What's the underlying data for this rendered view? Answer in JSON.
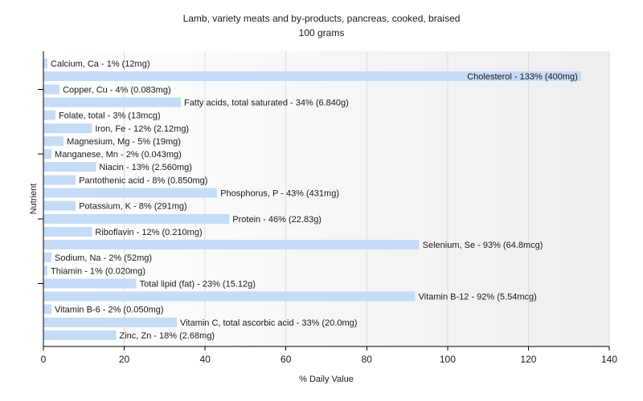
{
  "chart_data": {
    "type": "bar",
    "orientation": "horizontal",
    "title": "Lamb, variety meats and by-products, pancreas, cooked, braised",
    "subtitle": "100 grams",
    "xlabel": "% Daily Value",
    "ylabel": "Nutrient",
    "xlim": [
      0,
      140
    ],
    "xticks": [
      0,
      20,
      40,
      60,
      80,
      100,
      120,
      140
    ],
    "grid": true,
    "legend": "none",
    "bar_color": "#c6dbf6",
    "categories": [
      "Calcium, Ca - 1% (12mg)",
      "Cholesterol - 133% (400mg)",
      "Copper, Cu - 4% (0.083mg)",
      "Fatty acids, total saturated - 34% (6.840g)",
      "Folate, total - 3% (13mcg)",
      "Iron, Fe - 12% (2.12mg)",
      "Magnesium, Mg - 5% (19mg)",
      "Manganese, Mn - 2% (0.043mg)",
      "Niacin - 13% (2.560mg)",
      "Pantothenic acid - 8% (0.850mg)",
      "Phosphorus, P - 43% (431mg)",
      "Potassium, K - 8% (291mg)",
      "Protein - 46% (22.83g)",
      "Riboflavin - 12% (0.210mg)",
      "Selenium, Se - 93% (64.8mcg)",
      "Sodium, Na - 2% (52mg)",
      "Thiamin - 1% (0.020mg)",
      "Total lipid (fat) - 23% (15.12g)",
      "Vitamin B-12 - 92% (5.54mcg)",
      "Vitamin B-6 - 2% (0.050mg)",
      "Vitamin C, total ascorbic acid - 33% (20.0mg)",
      "Zinc, Zn - 18% (2.68mg)"
    ],
    "values": [
      1,
      133,
      4,
      34,
      3,
      12,
      5,
      2,
      13,
      8,
      43,
      8,
      46,
      12,
      93,
      2,
      1,
      23,
      92,
      2,
      33,
      18
    ]
  }
}
